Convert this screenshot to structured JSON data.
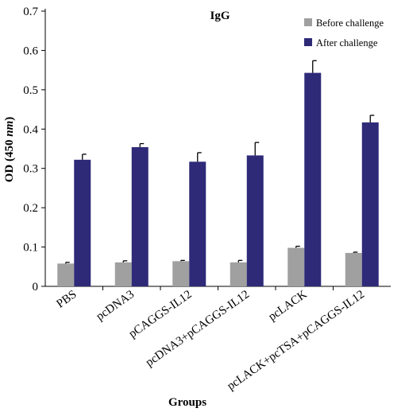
{
  "chart_data": {
    "type": "bar",
    "title": "IgG",
    "xlabel": "Groups",
    "ylabel_main": "OD (450 ",
    "ylabel_unit": "nm",
    "ylabel_end": ")",
    "ylim": [
      0,
      0.7
    ],
    "yticks": [
      "0",
      "0.1",
      "0.2",
      "0.3",
      "0.4",
      "0.5",
      "0.6",
      "0.7"
    ],
    "categories": [
      "PBS",
      "pcDNA3",
      "pCAGGS-IL12",
      "pcDNA3+pCAGGS-IL12",
      "pcLACK",
      "pcLACK+pcTSA+pCAGGS-IL12"
    ],
    "series": [
      {
        "name": "Before challenge",
        "color": "#a0a0a0",
        "values": [
          0.058,
          0.061,
          0.064,
          0.061,
          0.098,
          0.085
        ],
        "errors": [
          0.003,
          0.004,
          0.002,
          0.005,
          0.004,
          0.002
        ]
      },
      {
        "name": "After challenge",
        "color": "#2e2a78",
        "values": [
          0.322,
          0.354,
          0.317,
          0.333,
          0.543,
          0.417
        ],
        "errors": [
          0.014,
          0.009,
          0.023,
          0.033,
          0.031,
          0.018
        ]
      }
    ],
    "legend_position": "top-right",
    "grid": false
  }
}
